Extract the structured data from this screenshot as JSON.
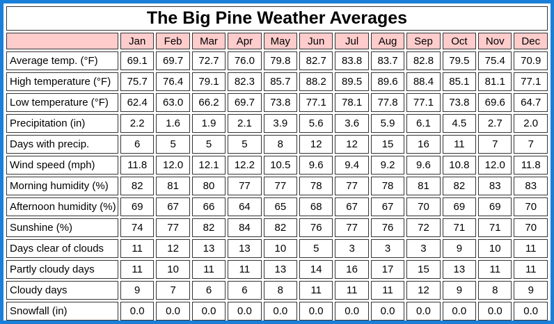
{
  "title": "The Big Pine Weather Averages",
  "months": [
    "Jan",
    "Feb",
    "Mar",
    "Apr",
    "May",
    "Jun",
    "Jul",
    "Aug",
    "Sep",
    "Oct",
    "Nov",
    "Dec"
  ],
  "rows": [
    {
      "label": "Average temp. (°F)",
      "values": [
        "69.1",
        "69.7",
        "72.7",
        "76.0",
        "79.8",
        "82.7",
        "83.8",
        "83.7",
        "82.8",
        "79.5",
        "75.4",
        "70.9"
      ]
    },
    {
      "label": "High temperature (°F)",
      "values": [
        "75.7",
        "76.4",
        "79.1",
        "82.3",
        "85.7",
        "88.2",
        "89.5",
        "89.6",
        "88.4",
        "85.1",
        "81.1",
        "77.1"
      ]
    },
    {
      "label": "Low temperature (°F)",
      "values": [
        "62.4",
        "63.0",
        "66.2",
        "69.7",
        "73.8",
        "77.1",
        "78.1",
        "77.8",
        "77.1",
        "73.8",
        "69.6",
        "64.7"
      ]
    },
    {
      "label": "Precipitation (in)",
      "values": [
        "2.2",
        "1.6",
        "1.9",
        "2.1",
        "3.9",
        "5.6",
        "3.6",
        "5.9",
        "6.1",
        "4.5",
        "2.7",
        "2.0"
      ]
    },
    {
      "label": "Days with precip.",
      "values": [
        "6",
        "5",
        "5",
        "5",
        "8",
        "12",
        "12",
        "15",
        "16",
        "11",
        "7",
        "7"
      ]
    },
    {
      "label": "Wind speed (mph)",
      "values": [
        "11.8",
        "12.0",
        "12.1",
        "12.2",
        "10.5",
        "9.6",
        "9.4",
        "9.2",
        "9.6",
        "10.8",
        "12.0",
        "11.8"
      ]
    },
    {
      "label": "Morning humidity (%)",
      "values": [
        "82",
        "81",
        "80",
        "77",
        "77",
        "78",
        "77",
        "78",
        "81",
        "82",
        "83",
        "83"
      ]
    },
    {
      "label": "Afternoon humidity (%)",
      "values": [
        "69",
        "67",
        "66",
        "64",
        "65",
        "68",
        "67",
        "67",
        "70",
        "69",
        "69",
        "70"
      ]
    },
    {
      "label": "Sunshine (%)",
      "values": [
        "74",
        "77",
        "82",
        "84",
        "82",
        "76",
        "77",
        "76",
        "72",
        "71",
        "71",
        "70"
      ]
    },
    {
      "label": "Days clear of clouds",
      "values": [
        "11",
        "12",
        "13",
        "13",
        "10",
        "5",
        "3",
        "3",
        "3",
        "9",
        "10",
        "11"
      ]
    },
    {
      "label": "Partly cloudy days",
      "values": [
        "11",
        "10",
        "11",
        "11",
        "13",
        "14",
        "16",
        "17",
        "15",
        "13",
        "11",
        "11"
      ]
    },
    {
      "label": "Cloudy days",
      "values": [
        "9",
        "7",
        "6",
        "6",
        "8",
        "11",
        "11",
        "11",
        "12",
        "9",
        "8",
        "9"
      ]
    },
    {
      "label": "Snowfall (in)",
      "values": [
        "0.0",
        "0.0",
        "0.0",
        "0.0",
        "0.0",
        "0.0",
        "0.0",
        "0.0",
        "0.0",
        "0.0",
        "0.0",
        "0.0"
      ]
    }
  ]
}
